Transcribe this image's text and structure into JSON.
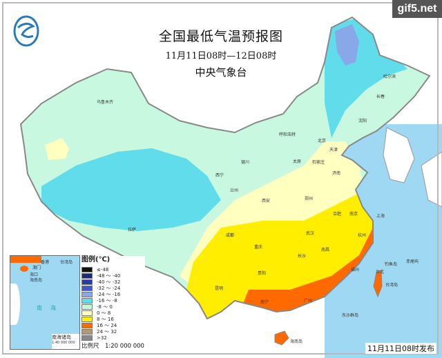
{
  "watermark": "gif5.net",
  "title": "全国最低气温预报图",
  "subtitle": "11月11日08时—12日08时",
  "issuer": "中央气象台",
  "publish_time": "11月11日08时发布",
  "legend": {
    "title": "图例(℃)",
    "items": [
      {
        "label": "≤-48",
        "color": "#111111"
      },
      {
        "label": "-48 ～ -40",
        "color": "#1a2a7a"
      },
      {
        "label": "-40 ～ -32",
        "color": "#2a3aa8"
      },
      {
        "label": "-32 ～ -24",
        "color": "#3e56d0"
      },
      {
        "label": "-24 ～ -16",
        "color": "#88a8e8"
      },
      {
        "label": "-16 ～ -8",
        "color": "#60dcea"
      },
      {
        "label": "-8 ～ 0",
        "color": "#c8f8e0"
      },
      {
        "label": "0 ～ 8",
        "color": "#ffffc0"
      },
      {
        "label": "8 ～ 16",
        "color": "#ffee00"
      },
      {
        "label": "16 ～ 24",
        "color": "#ff6a00"
      },
      {
        "label": "24 ～ 32",
        "color": "#b09a78"
      },
      {
        "label": ">32",
        "color": "#888888"
      }
    ],
    "scale": "比例尺　1:20 000 000"
  },
  "inset": {
    "labels": [
      "香港",
      "澳门",
      "台湾岛",
      "海口",
      "海南岛",
      "南海"
    ],
    "name": "南海诸岛",
    "scale": "1:40 000 000"
  },
  "cities": [
    "乌鲁木齐",
    "拉萨",
    "西宁",
    "兰州",
    "银川",
    "呼和浩特",
    "北京",
    "天津",
    "石家庄",
    "太原",
    "济南",
    "郑州",
    "西安",
    "成都",
    "重庆",
    "武汉",
    "合肥",
    "南京",
    "上海",
    "杭州",
    "长沙",
    "南昌",
    "贵阳",
    "昆明",
    "南宁",
    "广州",
    "福州",
    "台北",
    "哈尔滨",
    "长春",
    "沈阳",
    "台湾岛",
    "钓鱼岛",
    "赤尾屿",
    "东沙群岛",
    "海南岛"
  ],
  "colors": {
    "sea": "#9fd8f2",
    "border": "#8a8a8a"
  }
}
